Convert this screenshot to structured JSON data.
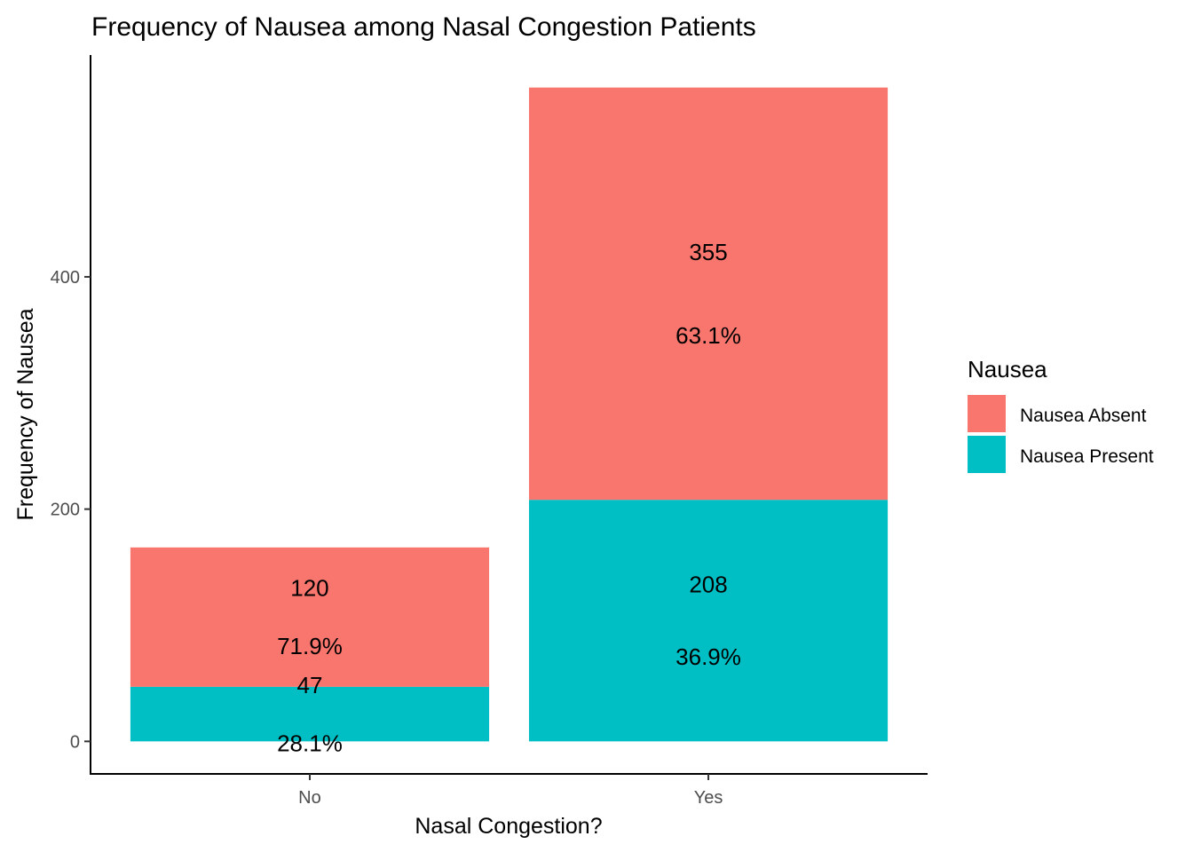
{
  "chart_data": {
    "type": "bar",
    "stacked": true,
    "title": "Frequency of Nausea among Nasal Congestion Patients",
    "xlabel": "Nasal Congestion?",
    "ylabel": "Frequency of Nausea",
    "categories": [
      "No",
      "Yes"
    ],
    "ylim": [
      -28,
      591
    ],
    "yticks": [
      0,
      200,
      400
    ],
    "grid": false,
    "legend": {
      "title": "Nausea",
      "position": "right"
    },
    "series": [
      {
        "name": "Nausea Absent",
        "color": "#F8766D",
        "values": [
          120,
          355
        ],
        "percent_labels": [
          "71.9%",
          "63.1%"
        ]
      },
      {
        "name": "Nausea Present",
        "color": "#00BFC4",
        "values": [
          47,
          208
        ],
        "percent_labels": [
          "28.1%",
          "36.9%"
        ]
      }
    ]
  }
}
